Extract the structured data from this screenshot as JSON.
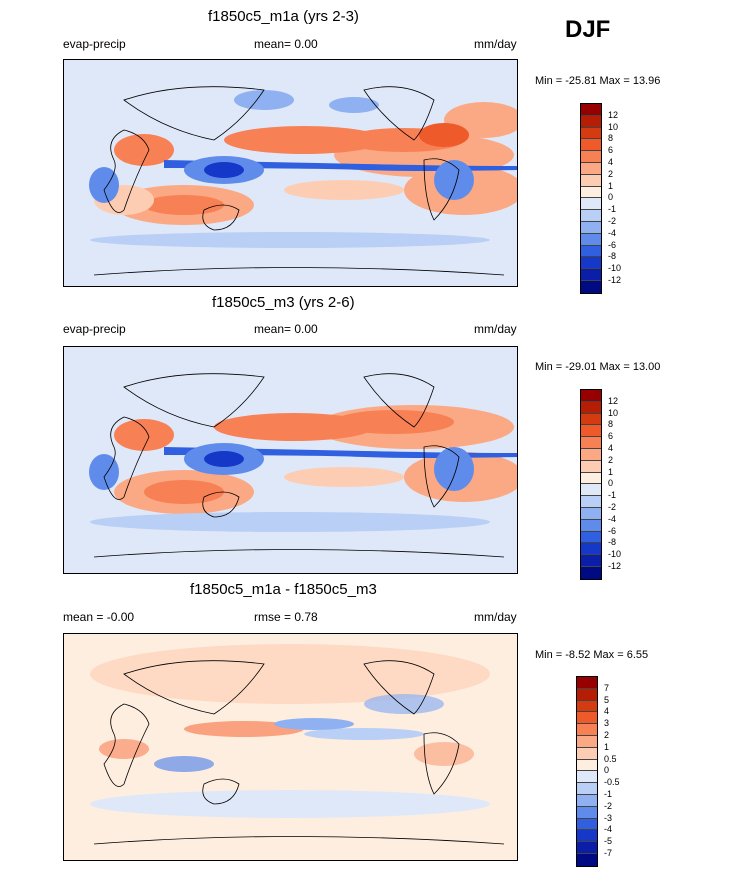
{
  "season": "DJF",
  "panels": [
    {
      "title": "f1850c5_m1a (yrs 2-3)",
      "left_label": "evap-precip",
      "center_label": "mean=   0.00",
      "units": "mm/day",
      "minmax": "Min = -25.81 Max =  13.96",
      "ticks": [
        "12",
        "10",
        "8",
        "6",
        "4",
        "2",
        "1",
        "0",
        "-1",
        "-2",
        "-4",
        "-6",
        "-8",
        "-10",
        "-12"
      ]
    },
    {
      "title": "f1850c5_m3 (yrs 2-6)",
      "left_label": "evap-precip",
      "center_label": "mean=   0.00",
      "units": "mm/day",
      "minmax": "Min = -29.01 Max =  13.00",
      "ticks": [
        "12",
        "10",
        "8",
        "6",
        "4",
        "2",
        "1",
        "0",
        "-1",
        "-2",
        "-4",
        "-6",
        "-8",
        "-10",
        "-12"
      ]
    },
    {
      "title": "f1850c5_m1a - f1850c5_m3",
      "left_label": "mean =  -0.00",
      "center_label": "rmse =   0.78",
      "units": "mm/day",
      "minmax": "Min =  -8.52 Max =   6.55",
      "ticks": [
        "7",
        "5",
        "4",
        "3",
        "2",
        "1",
        "0.5",
        "0",
        "-0.5",
        "-1",
        "-2",
        "-3",
        "-4",
        "-5",
        "-7"
      ]
    }
  ],
  "colors": [
    "#960000",
    "#b51d05",
    "#d43b10",
    "#ee5a2a",
    "#f88055",
    "#fba984",
    "#fdcdb3",
    "#feeee0",
    "#dfe8f8",
    "#b9cff5",
    "#8fb1f2",
    "#5f8cea",
    "#3060e0",
    "#1638c8",
    "#0a1ea8",
    "#000a82"
  ],
  "chart_data": [
    {
      "type": "heatmap",
      "title": "f1850c5_m1a (yrs 2-3)",
      "variable": "evap-precip",
      "units": "mm/day",
      "season": "DJF",
      "mean": 0.0,
      "min": -25.81,
      "max": 13.96,
      "levels": [
        -12,
        -10,
        -8,
        -6,
        -4,
        -2,
        -1,
        0,
        1,
        2,
        4,
        6,
        8,
        10,
        12
      ]
    },
    {
      "type": "heatmap",
      "title": "f1850c5_m3 (yrs 2-6)",
      "variable": "evap-precip",
      "units": "mm/day",
      "season": "DJF",
      "mean": 0.0,
      "min": -29.01,
      "max": 13.0,
      "levels": [
        -12,
        -10,
        -8,
        -6,
        -4,
        -2,
        -1,
        0,
        1,
        2,
        4,
        6,
        8,
        10,
        12
      ]
    },
    {
      "type": "heatmap",
      "title": "f1850c5_m1a - f1850c5_m3",
      "units": "mm/day",
      "mean": -0.0,
      "rmse": 0.78,
      "min": -8.52,
      "max": 6.55,
      "levels": [
        -7,
        -5,
        -4,
        -3,
        -2,
        -1,
        -0.5,
        0,
        0.5,
        1,
        2,
        3,
        4,
        5,
        7
      ]
    }
  ]
}
